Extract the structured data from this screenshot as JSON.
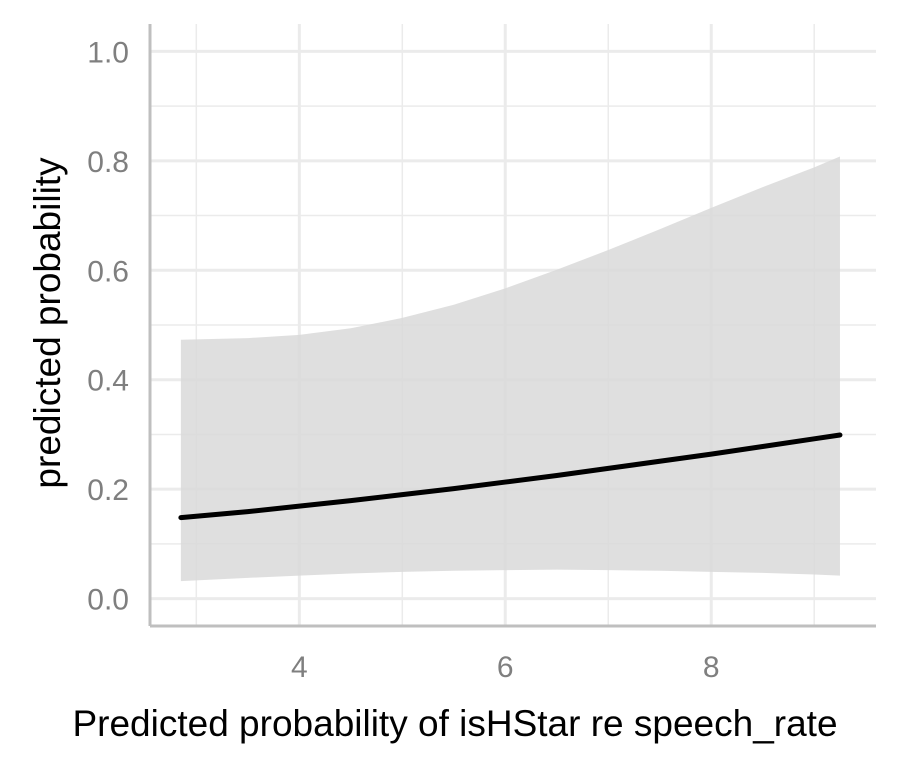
{
  "chart_data": {
    "type": "line",
    "title": "",
    "xlabel": "Predicted probability of isHStar re speech_rate",
    "ylabel": "predicted probability",
    "xlim": [
      2.55,
      9.6
    ],
    "ylim": [
      -0.05,
      1.05
    ],
    "x_ticks": [
      4,
      6,
      8
    ],
    "x_tick_labels": [
      "4",
      "6",
      "8"
    ],
    "y_ticks": [
      0.0,
      0.2,
      0.4,
      0.6,
      0.8,
      1.0
    ],
    "y_tick_labels": [
      "0.0",
      "0.2",
      "0.4",
      "0.6",
      "0.8",
      "1.0"
    ],
    "grid": true,
    "legend": "none",
    "series": [
      {
        "x": [
          2.85,
          3.5,
          4.0,
          4.5,
          5.0,
          5.5,
          6.0,
          6.5,
          7.0,
          7.5,
          8.0,
          8.5,
          9.0,
          9.25
        ],
        "y": [
          0.148,
          0.159,
          0.169,
          0.179,
          0.19,
          0.201,
          0.213,
          0.225,
          0.238,
          0.251,
          0.264,
          0.278,
          0.292,
          0.299
        ],
        "lower": [
          0.032,
          0.038,
          0.042,
          0.046,
          0.049,
          0.051,
          0.052,
          0.053,
          0.052,
          0.051,
          0.049,
          0.047,
          0.044,
          0.042
        ],
        "upper": [
          0.473,
          0.476,
          0.482,
          0.494,
          0.513,
          0.537,
          0.567,
          0.601,
          0.637,
          0.675,
          0.714,
          0.752,
          0.788,
          0.808
        ]
      }
    ],
    "colors": {
      "line": "#000000",
      "ribbon": "#d9d9d9",
      "grid": "#ebebeb",
      "axis": "#bfbfbf",
      "tick_text": "#7f7f7f",
      "title_text": "#000000"
    }
  }
}
